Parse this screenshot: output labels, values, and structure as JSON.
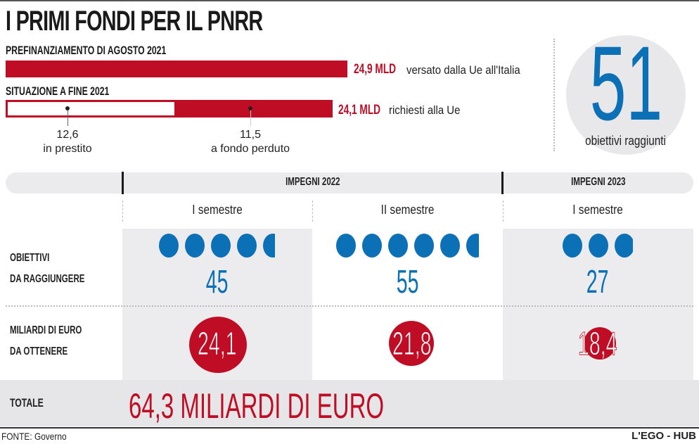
{
  "title": "I PRIMI FONDI PER IL PNRR",
  "prefinanziamento": {
    "label": "PREFINANZIAMENTO DI AGOSTO 2021",
    "value_label": "24,9 MLD",
    "note": "versato dalla Ue all'Italia"
  },
  "situazione": {
    "label": "SITUAZIONE A FINE 2021",
    "value_label": "24,1 MLD",
    "note": "richiesti alla Ue",
    "prestito": {
      "value": "12,6",
      "label": "in prestito"
    },
    "fondo_perduto": {
      "value": "11,5",
      "label": "a fondo perduto"
    }
  },
  "obiettivi_raggiunti": {
    "value": "51",
    "label": "obiettivi raggiunti"
  },
  "headers": {
    "impegni_2022": "IMPEGNI 2022",
    "impegni_2023": "IMPEGNI 2023"
  },
  "semesters": [
    "I semestre",
    "II semestre",
    "I semestre"
  ],
  "rows": {
    "obiettivi": [
      "OBIETTIVI",
      "DA RAGGIUNGERE"
    ],
    "miliardi": [
      "MILIARDI DI EURO",
      "DA OTTENERE"
    ]
  },
  "obiettivi_values": [
    "45",
    "55",
    "27"
  ],
  "miliardi_values": [
    "24,1",
    "21,8",
    "18,4"
  ],
  "totale": {
    "label": "TOTALE",
    "value": "64,3 MILIARDI DI EURO"
  },
  "source": "FONTE: Governo",
  "brand": "L'EGO - HUB",
  "colors": {
    "red": "#c00d26",
    "blue": "#0b70b5",
    "gray": "#ececee"
  },
  "chart_data": [
    {
      "type": "bar",
      "categories": [
        "PREFINANZIAMENTO DI AGOSTO 2021",
        "SITUAZIONE A FINE 2021"
      ],
      "series": [
        {
          "name": "in prestito",
          "values": [
            null,
            12.6
          ]
        },
        {
          "name": "a fondo perduto",
          "values": [
            null,
            11.5
          ]
        }
      ],
      "totals": [
        24.9,
        24.1
      ],
      "unit": "MLD"
    },
    {
      "type": "bubble",
      "categories": [
        "2022 I semestre",
        "2022 II semestre",
        "2023 I semestre"
      ],
      "obiettivi": [
        45,
        55,
        27
      ],
      "miliardi": [
        24.1,
        21.8,
        18.4
      ]
    }
  ]
}
